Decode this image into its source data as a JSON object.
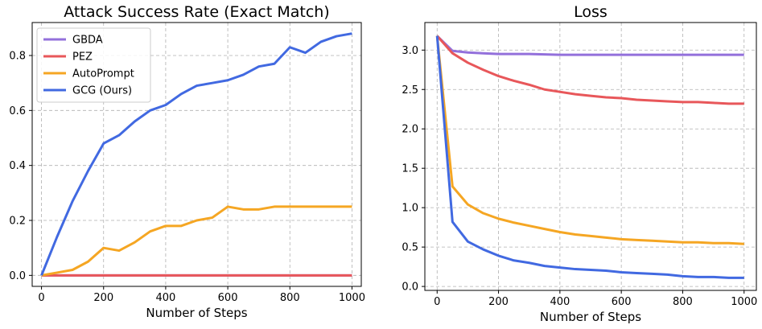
{
  "chart_data": [
    {
      "type": "line",
      "title": "Attack Success Rate (Exact Match)",
      "xlabel": "Number of Steps",
      "ylabel": "",
      "xlim": [
        -30,
        1030
      ],
      "ylim": [
        -0.04,
        0.92
      ],
      "xticks": [
        0,
        200,
        400,
        600,
        800,
        1000
      ],
      "yticks": [
        0.0,
        0.2,
        0.4,
        0.6,
        0.8
      ],
      "ytick_labels": [
        "0.0",
        "0.2",
        "0.4",
        "0.6",
        "0.8"
      ],
      "xtick_labels": [
        "0",
        "200",
        "400",
        "600",
        "800",
        "1000"
      ],
      "grid": true,
      "legend": "top-left",
      "series": [
        {
          "name": "GBDA",
          "color": "#9370DB",
          "x": [
            0,
            1000
          ],
          "y": [
            0.0,
            0.0
          ]
        },
        {
          "name": "PEZ",
          "color": "#E8575A",
          "x": [
            0,
            1000
          ],
          "y": [
            0.0,
            0.0
          ]
        },
        {
          "name": "AutoPrompt",
          "color": "#F5A623",
          "x": [
            0,
            50,
            100,
            150,
            200,
            250,
            300,
            350,
            400,
            450,
            500,
            550,
            600,
            650,
            700,
            750,
            800,
            850,
            900,
            950,
            1000
          ],
          "y": [
            0.0,
            0.01,
            0.02,
            0.05,
            0.1,
            0.09,
            0.12,
            0.16,
            0.18,
            0.18,
            0.2,
            0.21,
            0.25,
            0.24,
            0.24,
            0.25,
            0.25,
            0.25,
            0.25,
            0.25,
            0.25
          ]
        },
        {
          "name": "GCG (Ours)",
          "color": "#4169E1",
          "x": [
            0,
            50,
            100,
            150,
            200,
            250,
            300,
            350,
            400,
            450,
            500,
            550,
            600,
            650,
            700,
            750,
            800,
            850,
            900,
            950,
            1000
          ],
          "y": [
            0.0,
            0.14,
            0.27,
            0.38,
            0.48,
            0.51,
            0.56,
            0.6,
            0.62,
            0.66,
            0.69,
            0.7,
            0.71,
            0.73,
            0.76,
            0.77,
            0.83,
            0.81,
            0.85,
            0.87,
            0.88
          ]
        }
      ]
    },
    {
      "type": "line",
      "title": "Loss",
      "xlabel": "Number of Steps",
      "ylabel": "",
      "xlim": [
        -40,
        1040
      ],
      "ylim": [
        -0.05,
        3.35
      ],
      "xticks": [
        0,
        200,
        400,
        600,
        800,
        1000
      ],
      "yticks": [
        0.0,
        0.5,
        1.0,
        1.5,
        2.0,
        2.5,
        3.0
      ],
      "ytick_labels": [
        "0.0",
        "0.5",
        "1.0",
        "1.5",
        "2.0",
        "2.5",
        "3.0"
      ],
      "xtick_labels": [
        "0",
        "200",
        "400",
        "600",
        "800",
        "1000"
      ],
      "grid": true,
      "series": [
        {
          "name": "GBDA",
          "color": "#9370DB",
          "x": [
            0,
            50,
            100,
            150,
            200,
            300,
            400,
            500,
            600,
            700,
            800,
            900,
            1000
          ],
          "y": [
            3.18,
            2.99,
            2.97,
            2.96,
            2.95,
            2.95,
            2.94,
            2.94,
            2.94,
            2.94,
            2.94,
            2.94,
            2.94
          ]
        },
        {
          "name": "PEZ",
          "color": "#E8575A",
          "x": [
            0,
            50,
            100,
            150,
            200,
            250,
            300,
            350,
            400,
            450,
            500,
            550,
            600,
            650,
            700,
            750,
            800,
            850,
            900,
            950,
            1000
          ],
          "y": [
            3.18,
            2.96,
            2.84,
            2.75,
            2.67,
            2.61,
            2.56,
            2.5,
            2.47,
            2.44,
            2.42,
            2.4,
            2.39,
            2.37,
            2.36,
            2.35,
            2.34,
            2.34,
            2.33,
            2.32,
            2.32
          ]
        },
        {
          "name": "AutoPrompt",
          "color": "#F5A623",
          "x": [
            0,
            50,
            100,
            150,
            200,
            250,
            300,
            350,
            400,
            450,
            500,
            550,
            600,
            650,
            700,
            750,
            800,
            850,
            900,
            950,
            1000
          ],
          "y": [
            3.18,
            1.27,
            1.04,
            0.93,
            0.86,
            0.81,
            0.77,
            0.73,
            0.69,
            0.66,
            0.64,
            0.62,
            0.6,
            0.59,
            0.58,
            0.57,
            0.56,
            0.56,
            0.55,
            0.55,
            0.54
          ]
        },
        {
          "name": "GCG (Ours)",
          "color": "#4169E1",
          "x": [
            0,
            50,
            100,
            150,
            200,
            250,
            300,
            350,
            400,
            450,
            500,
            550,
            600,
            650,
            700,
            750,
            800,
            850,
            900,
            950,
            1000
          ],
          "y": [
            3.18,
            0.82,
            0.57,
            0.47,
            0.39,
            0.33,
            0.3,
            0.26,
            0.24,
            0.22,
            0.21,
            0.2,
            0.18,
            0.17,
            0.16,
            0.15,
            0.13,
            0.12,
            0.12,
            0.11,
            0.11
          ]
        }
      ]
    }
  ]
}
